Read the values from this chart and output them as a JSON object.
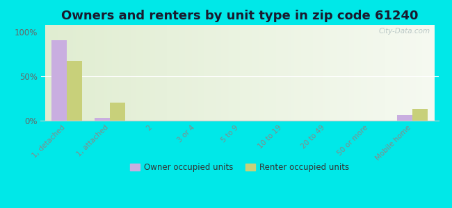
{
  "title": "Owners and renters by unit type in zip code 61240",
  "categories": [
    "1, detached",
    "1, attached",
    "2",
    "3 or 4",
    "5 to 9",
    "10 to 19",
    "20 to 49",
    "50 or more",
    "Mobile home"
  ],
  "owner_values": [
    91,
    3,
    0,
    0,
    0,
    0,
    0,
    0,
    6
  ],
  "renter_values": [
    67,
    20,
    0,
    0,
    0,
    0,
    0,
    0,
    13
  ],
  "owner_color": "#c9aee0",
  "renter_color": "#c8d07a",
  "background_color": "#00e8e8",
  "yticks": [
    0,
    50,
    100
  ],
  "ylim": [
    0,
    108
  ],
  "ylabel_labels": [
    "0%",
    "50%",
    "100%"
  ],
  "legend_owner": "Owner occupied units",
  "legend_renter": "Renter occupied units",
  "watermark": "City-Data.com",
  "bar_width": 0.35,
  "title_fontsize": 13
}
